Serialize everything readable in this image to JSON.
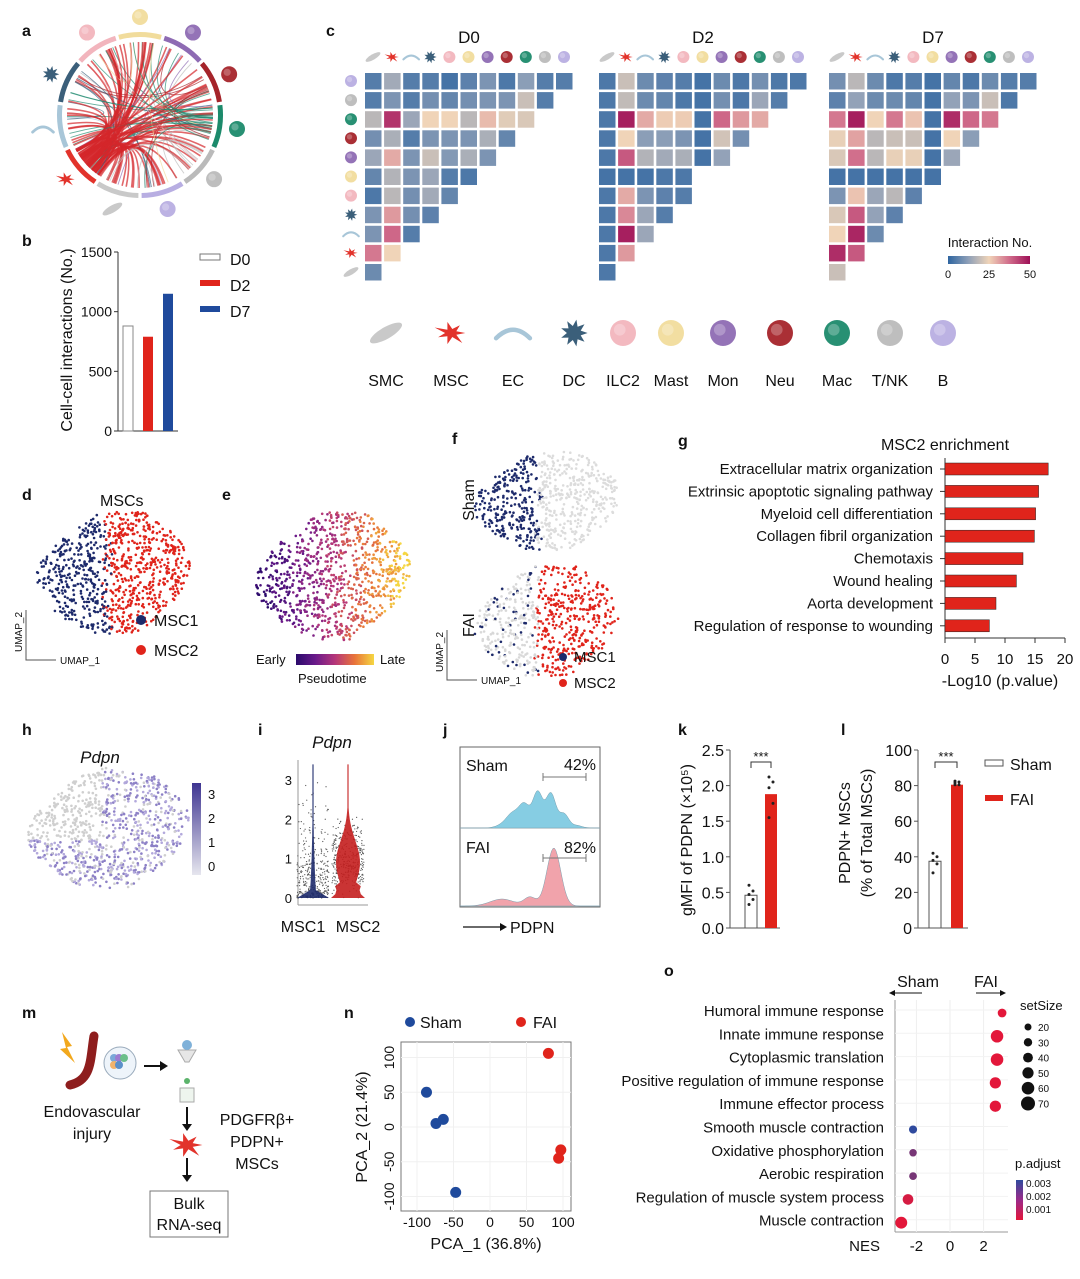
{
  "panel_letters": [
    "a",
    "b",
    "c",
    "d",
    "e",
    "f",
    "g",
    "h",
    "i",
    "j",
    "k",
    "l",
    "m",
    "n",
    "o"
  ],
  "cell_types": [
    "SMC",
    "MSC",
    "EC",
    "DC",
    "ILC2",
    "Mast",
    "Mon",
    "Neu",
    "Mac",
    "T/NK",
    "B"
  ],
  "cell_colors": {
    "SMC": "#c9c9c9",
    "MSC": "#e2332b",
    "EC": "#a8c6d8",
    "DC": "#3b5f7a",
    "ILC2": "#f2b5bd",
    "Mast": "#f1dc9c",
    "Mon": "#8e6bb3",
    "Neu": "#a5242a",
    "Mac": "#1c8a6b",
    "T/NK": "#bababa",
    "B": "#b8aee2"
  },
  "colors": {
    "navy": "#1d2a6b",
    "red": "#e0241b",
    "d7_blue": "#1f4a9c",
    "sham_hist": "#86cde3",
    "fai_hist": "#f1a3ab"
  },
  "chart_data": [
    {
      "panel": "b",
      "type": "bar",
      "categories": [
        "D0",
        "D2",
        "D7"
      ],
      "values": [
        880,
        790,
        1150
      ],
      "ylabel": "Cell-cell interactions (No.)",
      "ylim": [
        0,
        1500
      ],
      "yticks": [
        "0",
        "500",
        "1000",
        "1500"
      ],
      "legend": [
        "D0",
        "D2",
        "D7"
      ],
      "legend_placement": "right",
      "colors": [
        "#ffffff",
        "#e0241b",
        "#1f4a9c"
      ]
    },
    {
      "panel": "c",
      "type": "heatmap",
      "titles": [
        "D0",
        "D2",
        "D7"
      ],
      "rows": [
        "B",
        "T/NK",
        "Mac",
        "Neu",
        "Mon",
        "Mast",
        "ILC2",
        "DC",
        "EC",
        "MSC",
        "SMC"
      ],
      "columns": [
        "SMC",
        "MSC",
        "EC",
        "DC",
        "ILC2",
        "Mast",
        "Mon",
        "Neu",
        "Mac",
        "T/NK",
        "B"
      ],
      "matrices": [
        [
          [
            5,
            15,
            5,
            5,
            3,
            6,
            10,
            4,
            12,
            5,
            5
          ],
          [
            5,
            10,
            5,
            9,
            7,
            9,
            10,
            10,
            20,
            5
          ],
          [
            18,
            45,
            14,
            25,
            25,
            18,
            28,
            23,
            22
          ],
          [
            9,
            16,
            5,
            10,
            10,
            10,
            16,
            7
          ],
          [
            14,
            30,
            10,
            20,
            11,
            16,
            10
          ],
          [
            7,
            17,
            10,
            14,
            5,
            4
          ],
          [
            4,
            18,
            9,
            15,
            7
          ],
          [
            10,
            32,
            9,
            6
          ],
          [
            10,
            38,
            5
          ],
          [
            36,
            25
          ],
          [
            8
          ]
        ],
        [
          [
            4,
            20,
            8,
            6,
            5,
            3,
            8,
            4,
            9,
            4,
            4
          ],
          [
            4,
            19,
            8,
            7,
            4,
            3,
            9,
            4,
            14,
            5
          ],
          [
            4,
            48,
            30,
            26,
            26,
            3,
            38,
            32,
            30
          ],
          [
            4,
            25,
            12,
            12,
            10,
            3,
            21,
            9
          ],
          [
            4,
            40,
            17,
            15,
            16,
            3,
            13
          ],
          [
            3,
            3,
            3,
            4,
            4,
            null
          ],
          [
            4,
            30,
            10,
            6,
            5
          ],
          [
            4,
            34,
            14,
            5
          ],
          [
            4,
            48,
            14
          ],
          [
            4,
            32
          ],
          [
            4
          ]
        ],
        [
          [
            9,
            18,
            8,
            4,
            5,
            3,
            7,
            4,
            8,
            5,
            5
          ],
          [
            6,
            13,
            8,
            8,
            7,
            3,
            13,
            10,
            20,
            4
          ],
          [
            36,
            48,
            25,
            36,
            27,
            3,
            46,
            38,
            36
          ],
          [
            24,
            31,
            18,
            20,
            20,
            3,
            25,
            12
          ],
          [
            22,
            37,
            18,
            24,
            24,
            3,
            14
          ],
          [
            3,
            3,
            3,
            3,
            3,
            3
          ],
          [
            10,
            27,
            14,
            18,
            6
          ],
          [
            22,
            40,
            13,
            6
          ],
          [
            25,
            47,
            8
          ],
          [
            46,
            40
          ],
          [
            20
          ]
        ]
      ],
      "colorbar": {
        "title": "Interaction No.",
        "range": [
          0,
          50
        ],
        "ticks": [
          "0",
          "25",
          "50"
        ],
        "colors": [
          "#2e65a0",
          "#8fa0b8",
          "#f0d4b8",
          "#d06b8a",
          "#9e1057"
        ]
      }
    },
    {
      "panel": "d",
      "type": "scatter",
      "title": "MSCs",
      "xlabel": "UMAP_1",
      "ylabel": "UMAP_2",
      "legend": [
        "MSC1",
        "MSC2"
      ],
      "colors": [
        "#1d2a6b",
        "#e0241b"
      ]
    },
    {
      "panel": "e",
      "type": "scatter",
      "colorbar": {
        "low": "Early",
        "high": "Late",
        "title": "Pseudotime"
      }
    },
    {
      "panel": "f",
      "type": "scatter",
      "facets": [
        "Sham",
        "FAI"
      ],
      "xlabel": "UMAP_1",
      "ylabel": "UMAP_2",
      "legend": [
        "MSC1",
        "MSC2"
      ]
    },
    {
      "panel": "g",
      "type": "bar",
      "orientation": "horizontal",
      "title": "MSC2 enrichment",
      "categories": [
        "Extracellular matrix organization",
        "Extrinsic apoptotic signaling pathway",
        "Myeloid cell differentiation",
        "Collagen fibril organization",
        "Chemotaxis",
        "Wound healing",
        "Aorta development",
        "Regulation of response to wounding"
      ],
      "values": [
        17.2,
        15.6,
        15.1,
        14.9,
        13.0,
        11.9,
        8.5,
        7.4
      ],
      "xlabel": "-Log10 (p.value)",
      "xlim": [
        0,
        20
      ],
      "xticks": [
        "0",
        "5",
        "10",
        "15",
        "20"
      ]
    },
    {
      "panel": "h",
      "type": "scatter",
      "title": "Pdpn",
      "colorbar": {
        "ticks": [
          "3",
          "2",
          "1",
          "0"
        ],
        "range": [
          0,
          3
        ]
      }
    },
    {
      "panel": "i",
      "type": "violin",
      "title": "Pdpn",
      "categories": [
        "MSC1",
        "MSC2"
      ],
      "ylim": [
        0,
        3.5
      ],
      "yticks": [
        "0",
        "1",
        "2",
        "3"
      ]
    },
    {
      "panel": "j",
      "type": "area",
      "facets": [
        "Sham",
        "FAI"
      ],
      "gates": [
        "42%",
        "82%"
      ],
      "xlabel": "PDPN"
    },
    {
      "panel": "k",
      "type": "bar",
      "categories": [
        "Sham",
        "FAI"
      ],
      "values": [
        0.46,
        1.88
      ],
      "points": [
        [
          0.6,
          0.52,
          0.47,
          0.4,
          0.33
        ],
        [
          2.12,
          2.05,
          1.97,
          1.75,
          1.55
        ]
      ],
      "ylabel": "gMFI of PDPN (×10⁵)",
      "ylim": [
        0,
        2.5
      ],
      "yticks": [
        "0.0",
        "0.5",
        "1.0",
        "1.5",
        "2.0",
        "2.5"
      ],
      "significance": "***"
    },
    {
      "panel": "l",
      "type": "bar",
      "categories": [
        "Sham",
        "FAI"
      ],
      "values": [
        37.5,
        80.5
      ],
      "points": [
        [
          42,
          40,
          38,
          36,
          31
        ],
        [
          82.5,
          82,
          81.5,
          80.5,
          80.5
        ]
      ],
      "ylabel": [
        "PDPN+ MSCs",
        "(% of Total MSCs)"
      ],
      "ylim": [
        0,
        100
      ],
      "yticks": [
        "0",
        "20",
        "40",
        "60",
        "80",
        "100"
      ],
      "significance": "***",
      "legend": [
        "Sham",
        "FAI"
      ]
    },
    {
      "panel": "n",
      "type": "scatter",
      "series": [
        {
          "name": "Sham",
          "color": "#1f4a9c",
          "x": [
            -87,
            -74,
            -64,
            -47
          ],
          "y": [
            50,
            5,
            11,
            -94
          ]
        },
        {
          "name": "FAI",
          "color": "#e0241b",
          "x": [
            80,
            97,
            94
          ],
          "y": [
            106,
            -33,
            -45
          ]
        }
      ],
      "xlabel": "PCA_1 (36.8%)",
      "ylabel": "PCA_2 (21.4%)",
      "xlim": [
        -120,
        120
      ],
      "ylim": [
        -120,
        120
      ],
      "xticks": [
        "-100",
        "-50",
        "0",
        "50",
        "100"
      ],
      "yticks": [
        "-100",
        "-50",
        "0",
        "50",
        "100"
      ]
    },
    {
      "panel": "o",
      "type": "scatter",
      "subtype": "dotplot",
      "categories": [
        "Humoral immune response",
        "Innate immune response",
        "Cytoplasmic translation",
        "Positive regulation of immune response",
        "Immune effector process",
        "Smooth muscle contraction",
        "Oxidative phosphorylation",
        "Aerobic respiration",
        "Regulation of muscle system process",
        "Muscle contraction"
      ],
      "nes": [
        3.1,
        2.8,
        2.8,
        2.7,
        2.7,
        -2.2,
        -2.2,
        -2.2,
        -2.5,
        -2.9
      ],
      "set_size": [
        30,
        60,
        60,
        50,
        50,
        25,
        20,
        22,
        45,
        55
      ],
      "p_adjust": [
        0.0005,
        0.0005,
        0.0005,
        0.0005,
        0.0005,
        0.003,
        0.002,
        0.002,
        0.0007,
        0.0005
      ],
      "xlabel": "NES",
      "xticks": [
        "-2",
        "0",
        "2"
      ],
      "direction_labels": [
        "Sham",
        "FAI"
      ],
      "size_legend": {
        "title": "setSize",
        "values": [
          "20",
          "30",
          "40",
          "50",
          "60",
          "70"
        ]
      },
      "color_legend": {
        "title": "p.adjust",
        "ticks": [
          "0.003",
          "0.002",
          "0.001"
        ]
      }
    }
  ],
  "schematic_m": {
    "step1": "Endovascular",
    "step1b": "injury",
    "cells": [
      "PDGFRβ+",
      "PDPN+",
      "MSCs"
    ],
    "box": [
      "Bulk",
      "RNA-seq"
    ]
  }
}
